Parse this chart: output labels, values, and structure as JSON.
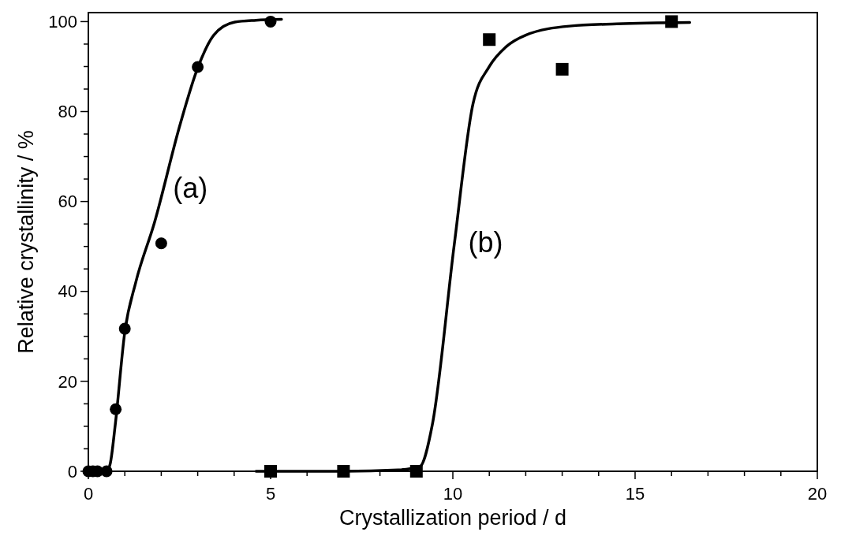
{
  "chart_data": {
    "type": "scatter",
    "xlabel": "Crystallization period / d",
    "ylabel": "Relative crystallinity / %",
    "xlim": [
      0,
      20
    ],
    "ylim": [
      0,
      102
    ],
    "xticks": [
      0,
      {
        "value": 1,
        "label": null
      },
      {
        "value": 2,
        "label": null
      },
      {
        "value": 3,
        "label": null
      },
      {
        "value": 4,
        "label": null
      },
      5,
      {
        "value": 6,
        "label": null
      },
      {
        "value": 7,
        "label": null
      },
      {
        "value": 8,
        "label": null
      },
      {
        "value": 9,
        "label": null
      },
      10,
      {
        "value": 11,
        "label": null
      },
      {
        "value": 12,
        "label": null
      },
      {
        "value": 13,
        "label": null
      },
      {
        "value": 14,
        "label": null
      },
      15,
      {
        "value": 16,
        "label": null
      },
      {
        "value": 17,
        "label": null
      },
      {
        "value": 18,
        "label": null
      },
      {
        "value": 19,
        "label": null
      },
      20
    ],
    "yticks": [
      0,
      {
        "value": 5,
        "label": null
      },
      {
        "value": 10,
        "label": null
      },
      {
        "value": 15,
        "label": null
      },
      20,
      {
        "value": 25,
        "label": null
      },
      {
        "value": 30,
        "label": null
      },
      {
        "value": 35,
        "label": null
      },
      40,
      {
        "value": 45,
        "label": null
      },
      {
        "value": 50,
        "label": null
      },
      {
        "value": 55,
        "label": null
      },
      60,
      {
        "value": 65,
        "label": null
      },
      {
        "value": 70,
        "label": null
      },
      {
        "value": 75,
        "label": null
      },
      80,
      {
        "value": 85,
        "label": null
      },
      {
        "value": 90,
        "label": null
      },
      {
        "value": 95,
        "label": null
      },
      100
    ],
    "grid": false,
    "series": [
      {
        "type": "line",
        "color": "#000000",
        "marker": "none",
        "line_style": "solid",
        "x": [
          0,
          0.5,
          0.6,
          0.74,
          1,
          1.3,
          1.81,
          2.52,
          3,
          3.44,
          4.02,
          4.6,
          5.3
        ],
        "values": [
          0,
          0,
          1.7,
          10.5,
          31,
          42,
          55.2,
          77.2,
          89.7,
          97,
          99.9,
          100.3,
          100.5
        ]
      },
      {
        "type": "line",
        "color": "#000000",
        "marker": "none",
        "line_style": "solid",
        "x": [
          4.6,
          7,
          8.5,
          9.09,
          9.44,
          10.04,
          10.55,
          11,
          11.46,
          12,
          13.2,
          14.5,
          16.5
        ],
        "values": [
          0,
          0,
          0.3,
          1,
          10.5,
          50.5,
          81.6,
          90,
          94.4,
          97,
          99,
          99.5,
          99.8
        ]
      },
      {
        "color": "#000000",
        "marker": "circle",
        "x": [
          0,
          0.125,
          0.25,
          0.5,
          0.75,
          1,
          2,
          3,
          5
        ],
        "values": [
          0,
          0,
          0,
          0,
          13.8,
          31.7,
          50.7,
          89.9,
          100
        ]
      },
      {
        "type": "scatter",
        "color": "#000000",
        "marker": "square",
        "x": [
          5,
          7,
          9,
          11,
          13,
          16
        ],
        "values": [
          0,
          0,
          0,
          96,
          89.4,
          100
        ]
      }
    ],
    "annotations": [
      "(a)",
      "(b)"
    ]
  }
}
